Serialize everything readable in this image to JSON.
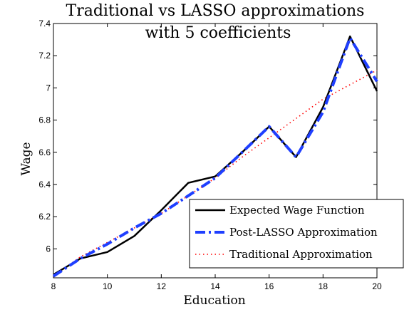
{
  "chart_data": {
    "type": "line",
    "title": "Traditional vs LASSO approximations",
    "subtitle": "with 5 coefficients",
    "xlabel": "Education",
    "ylabel": "Wage",
    "xlim": [
      8,
      20
    ],
    "ylim": [
      5.82,
      7.4
    ],
    "xticks": [
      8,
      10,
      12,
      14,
      16,
      18,
      20
    ],
    "yticks": [
      6,
      6.2,
      6.4,
      6.6,
      6.8,
      7,
      7.2,
      7.4
    ],
    "grid": false,
    "legend_position": "bottom-right",
    "x": [
      8,
      9,
      10,
      11,
      12,
      13,
      14,
      15,
      16,
      17,
      18,
      19,
      20
    ],
    "series": [
      {
        "name": "Expected Wage Function",
        "style": "solid",
        "color": "#000000",
        "values": [
          5.84,
          5.94,
          5.98,
          6.08,
          6.24,
          6.41,
          6.45,
          6.6,
          6.76,
          6.57,
          6.88,
          7.32,
          6.98
        ]
      },
      {
        "name": "Post-LASSO Approximation",
        "style": "dashdot",
        "color": "#1f3fff",
        "values": [
          5.83,
          5.94,
          6.03,
          6.13,
          6.22,
          6.33,
          6.44,
          6.6,
          6.76,
          6.57,
          6.85,
          7.31,
          7.04
        ]
      },
      {
        "name": "Traditional Approximation",
        "style": "dotted",
        "color": "#ff0000",
        "values": [
          5.83,
          5.95,
          6.04,
          6.13,
          6.22,
          6.33,
          6.44,
          6.57,
          6.69,
          6.81,
          6.93,
          7.02,
          7.11
        ]
      }
    ]
  }
}
